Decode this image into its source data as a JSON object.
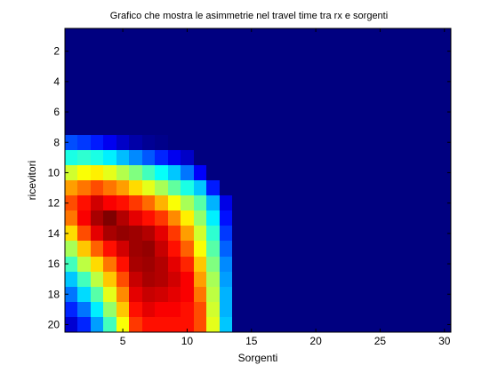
{
  "chart_data": {
    "type": "heatmap",
    "title": "Grafico che mostra le asimmetrie nel travel time tra rx e sorgenti",
    "xlabel": "Sorgenti",
    "ylabel": "ricevitori",
    "x_range": [
      1,
      30
    ],
    "y_range": [
      1,
      20
    ],
    "y_reversed": true,
    "x_ticks": [
      5,
      10,
      15,
      20,
      25,
      30
    ],
    "y_ticks": [
      2,
      4,
      6,
      8,
      10,
      12,
      14,
      16,
      18,
      20
    ],
    "colormap": "jet",
    "color_range": [
      0,
      1
    ],
    "grid": false,
    "rows": [
      {
        "y": 8,
        "values": [
          0.2,
          0.18,
          0.15,
          0.11,
          0.07,
          0.04,
          0.02,
          0.01,
          0,
          0,
          0,
          0,
          0
        ]
      },
      {
        "y": 9,
        "values": [
          0.4,
          0.42,
          0.4,
          0.36,
          0.31,
          0.26,
          0.21,
          0.16,
          0.11,
          0.07,
          0,
          0,
          0
        ]
      },
      {
        "y": 10,
        "values": [
          0.58,
          0.62,
          0.64,
          0.6,
          0.55,
          0.5,
          0.44,
          0.38,
          0.32,
          0.24,
          0.12,
          0,
          0
        ]
      },
      {
        "y": 11,
        "values": [
          0.72,
          0.76,
          0.8,
          0.76,
          0.72,
          0.66,
          0.6,
          0.54,
          0.47,
          0.4,
          0.32,
          0.15,
          0
        ]
      },
      {
        "y": 12,
        "values": [
          0.8,
          0.86,
          0.92,
          0.88,
          0.86,
          0.82,
          0.77,
          0.7,
          0.62,
          0.54,
          0.46,
          0.3,
          0.1
        ]
      },
      {
        "y": 13,
        "values": [
          0.76,
          0.88,
          0.96,
          1.0,
          0.95,
          0.9,
          0.86,
          0.82,
          0.74,
          0.64,
          0.52,
          0.36,
          0.14
        ]
      },
      {
        "y": 14,
        "values": [
          0.66,
          0.8,
          0.9,
          0.96,
          0.98,
          0.97,
          0.95,
          0.9,
          0.82,
          0.72,
          0.58,
          0.42,
          0.18
        ]
      },
      {
        "y": 15,
        "values": [
          0.54,
          0.68,
          0.78,
          0.86,
          0.92,
          0.97,
          0.98,
          0.93,
          0.86,
          0.78,
          0.62,
          0.46,
          0.22
        ]
      },
      {
        "y": 16,
        "values": [
          0.44,
          0.56,
          0.66,
          0.76,
          0.86,
          0.96,
          0.97,
          0.95,
          0.9,
          0.84,
          0.68,
          0.5,
          0.26
        ]
      },
      {
        "y": 17,
        "values": [
          0.32,
          0.44,
          0.56,
          0.68,
          0.8,
          0.93,
          0.96,
          0.95,
          0.92,
          0.88,
          0.72,
          0.54,
          0.28
        ]
      },
      {
        "y": 18,
        "values": [
          0.24,
          0.34,
          0.46,
          0.6,
          0.74,
          0.9,
          0.93,
          0.92,
          0.9,
          0.88,
          0.76,
          0.56,
          0.3
        ]
      },
      {
        "y": 19,
        "values": [
          0.16,
          0.24,
          0.36,
          0.52,
          0.68,
          0.86,
          0.9,
          0.88,
          0.88,
          0.86,
          0.8,
          0.58,
          0.3
        ]
      },
      {
        "y": 20,
        "values": [
          0.08,
          0.16,
          0.28,
          0.44,
          0.62,
          0.82,
          0.86,
          0.86,
          0.86,
          0.86,
          0.8,
          0.6,
          0.32
        ]
      }
    ]
  }
}
